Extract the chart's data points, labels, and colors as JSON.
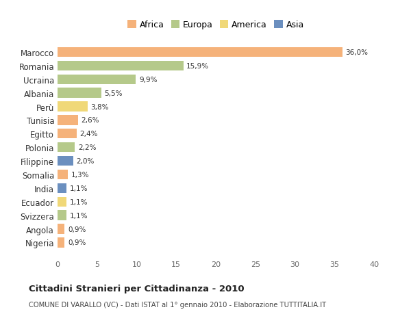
{
  "categories": [
    "Nigeria",
    "Angola",
    "Svizzera",
    "Ecuador",
    "India",
    "Somalia",
    "Filippine",
    "Polonia",
    "Egitto",
    "Tunisia",
    "Perù",
    "Albania",
    "Ucraina",
    "Romania",
    "Marocco"
  ],
  "values": [
    0.9,
    0.9,
    1.1,
    1.1,
    1.1,
    1.3,
    2.0,
    2.2,
    2.4,
    2.6,
    3.8,
    5.5,
    9.9,
    15.9,
    36.0
  ],
  "labels": [
    "0,9%",
    "0,9%",
    "1,1%",
    "1,1%",
    "1,1%",
    "1,3%",
    "2,0%",
    "2,2%",
    "2,4%",
    "2,6%",
    "3,8%",
    "5,5%",
    "9,9%",
    "15,9%",
    "36,0%"
  ],
  "colors": [
    "#f5b27a",
    "#f5b27a",
    "#b5c98a",
    "#f0d878",
    "#6b8fbf",
    "#f5b27a",
    "#6b8fbf",
    "#b5c98a",
    "#f5b27a",
    "#f5b27a",
    "#f0d878",
    "#b5c98a",
    "#b5c98a",
    "#b5c98a",
    "#f5b27a"
  ],
  "legend_labels": [
    "Africa",
    "Europa",
    "America",
    "Asia"
  ],
  "legend_colors": [
    "#f5b27a",
    "#b5c98a",
    "#f0d878",
    "#6b8fbf"
  ],
  "title": "Cittadini Stranieri per Cittadinanza - 2010",
  "subtitle": "COMUNE DI VARALLO (VC) - Dati ISTAT al 1° gennaio 2010 - Elaborazione TUTTITALIA.IT",
  "xlim": [
    0,
    40
  ],
  "xticks": [
    0,
    5,
    10,
    15,
    20,
    25,
    30,
    35,
    40
  ],
  "bg_color": "#ffffff",
  "bar_height": 0.72
}
